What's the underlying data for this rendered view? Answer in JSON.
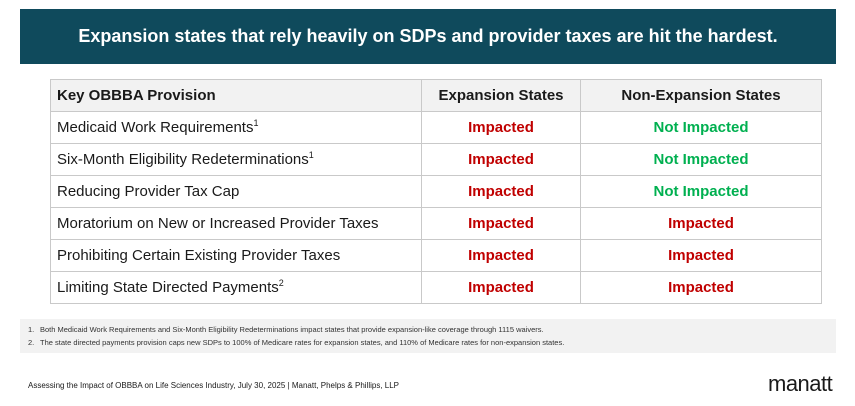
{
  "banner": {
    "title": "Expansion states that rely heavily on SDPs and provider taxes are hit the hardest."
  },
  "colors": {
    "impacted": "#c00000",
    "not_impacted": "#00b050",
    "banner_bg": "#0f4a5c"
  },
  "table": {
    "headers": [
      "Key OBBBA Provision",
      "Expansion States",
      "Non-Expansion States"
    ],
    "rows": [
      {
        "provision": "Medicaid Work Requirements",
        "sup": "1",
        "expansion": "Impacted",
        "non_expansion": "Not Impacted"
      },
      {
        "provision": "Six-Month Eligibility Redeterminations",
        "sup": "1",
        "expansion": "Impacted",
        "non_expansion": "Not Impacted"
      },
      {
        "provision": "Reducing Provider Tax Cap",
        "sup": "",
        "expansion": "Impacted",
        "non_expansion": "Not Impacted"
      },
      {
        "provision": "Moratorium on New or Increased Provider Taxes",
        "sup": "",
        "expansion": "Impacted",
        "non_expansion": "Impacted"
      },
      {
        "provision": "Prohibiting Certain Existing Provider Taxes",
        "sup": "",
        "expansion": "Impacted",
        "non_expansion": "Impacted"
      },
      {
        "provision": "Limiting State Directed Payments",
        "sup": "2",
        "expansion": "Impacted",
        "non_expansion": "Impacted"
      }
    ]
  },
  "footnotes": [
    {
      "num": "1.",
      "text": "Both Medicaid Work Requirements and Six-Month Eligibility Redeterminations impact states that provide expansion-like coverage through 1115 waivers."
    },
    {
      "num": "2.",
      "text": "The state directed payments provision caps new SDPs to 100% of Medicare rates for expansion states, and 110% of Medicare rates for non-expansion states."
    }
  ],
  "footer": {
    "text": "Assessing the Impact of OBBBA on Life Sciences Industry, July 30, 2025 | Manatt, Phelps & Phillips, LLP",
    "logo": "manatt"
  }
}
